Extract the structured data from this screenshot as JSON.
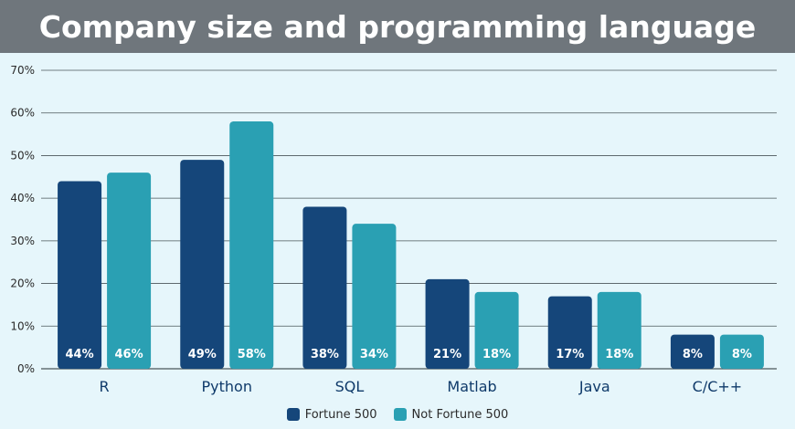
{
  "title": "Company size and programming language",
  "colors": {
    "fortune": "#15467a",
    "not_fortune": "#2aa0b3",
    "banner": "#6f767c",
    "background": "#e6f6fb",
    "grid": "#2f3a3f"
  },
  "legend": {
    "items": [
      {
        "label": "Fortune 500"
      },
      {
        "label": "Not Fortune 500"
      }
    ]
  },
  "chart_data": {
    "type": "bar",
    "title": "Company size and programming language",
    "categories": [
      "R",
      "Python",
      "SQL",
      "Matlab",
      "Java",
      "C/C++"
    ],
    "series": [
      {
        "name": "Fortune 500",
        "values": [
          44,
          49,
          38,
          21,
          17,
          8
        ],
        "labels": [
          "44%",
          "49%",
          "38%",
          "21%",
          "17%",
          "8%"
        ]
      },
      {
        "name": "Not Fortune 500",
        "values": [
          46,
          58,
          34,
          18,
          18,
          8
        ],
        "labels": [
          "46%",
          "58%",
          "34%",
          "18%",
          "18%",
          "8%"
        ]
      }
    ],
    "ylim": [
      0,
      70
    ],
    "yticks": [
      "0%",
      "10%",
      "20%",
      "30%",
      "40%",
      "50%",
      "60%",
      "70%"
    ],
    "grid": true,
    "legend_position": "bottom"
  }
}
